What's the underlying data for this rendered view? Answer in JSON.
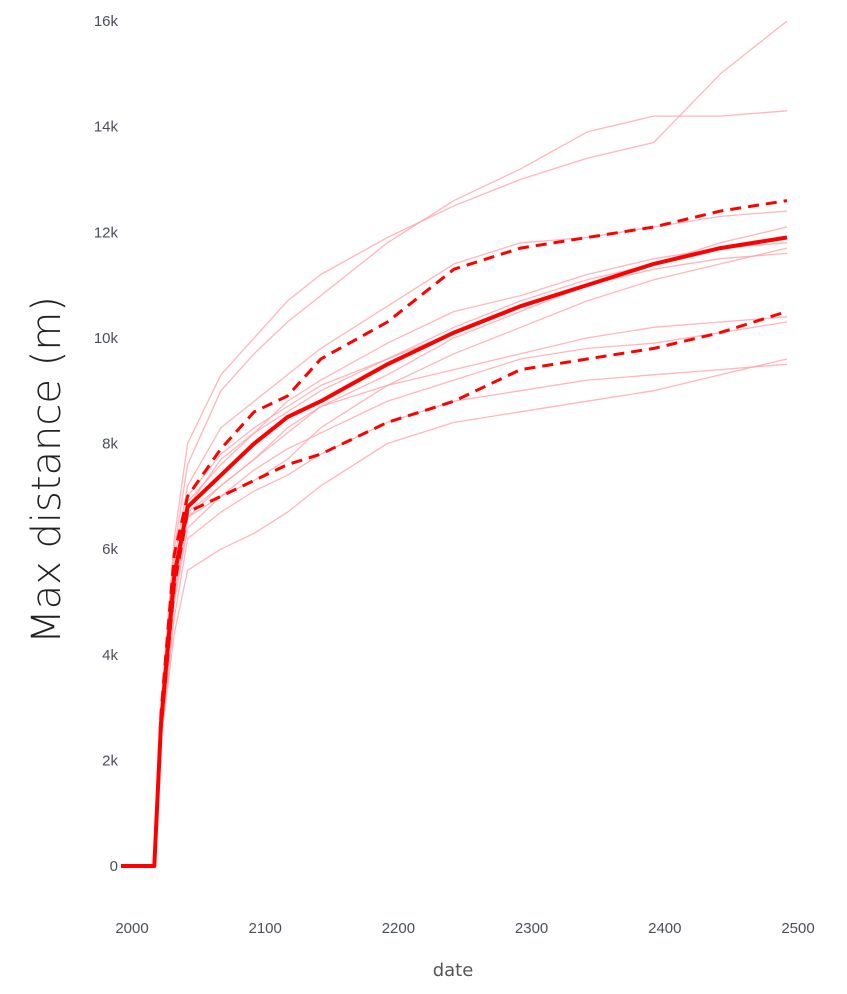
{
  "chart_data": {
    "type": "line",
    "title": "",
    "xlabel": "date",
    "ylabel": "Max distance (m)",
    "xlim": [
      2000,
      2500
    ],
    "ylim": [
      0,
      16000
    ],
    "x_ticks": [
      2000,
      2100,
      2200,
      2300,
      2400,
      2500
    ],
    "x_tick_labels": [
      "2000",
      "2100",
      "2200",
      "2300",
      "2400",
      "2500"
    ],
    "y_ticks": [
      0,
      2000,
      4000,
      6000,
      8000,
      10000,
      12000,
      14000,
      16000
    ],
    "y_tick_labels": [
      "0",
      "2k",
      "4k",
      "6k",
      "8k",
      "10k",
      "12k",
      "14k",
      "16k"
    ],
    "grid": false,
    "colors": {
      "ensemble": "#ff9ea6",
      "median": "#ff0000",
      "bounds": "#ff0000",
      "tick_text": "#4a4f5c"
    },
    "series": [
      {
        "role": "ensemble",
        "style": "thin",
        "x": [
          2000,
          2025,
          2030,
          2040,
          2050,
          2075,
          2100,
          2125,
          2150,
          2200,
          2250,
          2300,
          2350,
          2400,
          2450,
          2500
        ],
        "y": [
          0,
          0,
          3000,
          6200,
          8000,
          9300,
          10000,
          10700,
          11200,
          11900,
          12500,
          13000,
          13400,
          13700,
          15000,
          16000
        ]
      },
      {
        "role": "ensemble",
        "style": "thin",
        "x": [
          2000,
          2025,
          2030,
          2040,
          2050,
          2075,
          2100,
          2125,
          2150,
          2200,
          2250,
          2300,
          2350,
          2400,
          2450,
          2500
        ],
        "y": [
          0,
          0,
          3000,
          6000,
          7600,
          9000,
          9700,
          10300,
          10800,
          11800,
          12600,
          13200,
          13900,
          14200,
          14200,
          14300
        ]
      },
      {
        "role": "ensemble",
        "style": "thin",
        "x": [
          2000,
          2025,
          2030,
          2040,
          2050,
          2075,
          2100,
          2125,
          2150,
          2200,
          2250,
          2300,
          2350,
          2400,
          2450,
          2500
        ],
        "y": [
          0,
          0,
          2900,
          5800,
          7200,
          8300,
          8800,
          9300,
          9800,
          10600,
          11400,
          11800,
          11900,
          12100,
          12300,
          12400
        ]
      },
      {
        "role": "ensemble",
        "style": "thin",
        "x": [
          2000,
          2025,
          2030,
          2040,
          2050,
          2075,
          2100,
          2125,
          2150,
          2200,
          2250,
          2300,
          2350,
          2400,
          2450,
          2500
        ],
        "y": [
          0,
          0,
          2800,
          5600,
          6900,
          7600,
          8200,
          8600,
          9000,
          9600,
          10200,
          10700,
          11100,
          11400,
          11700,
          11900
        ]
      },
      {
        "role": "ensemble",
        "style": "thin",
        "x": [
          2000,
          2025,
          2030,
          2040,
          2050,
          2075,
          2100,
          2125,
          2150,
          2200,
          2250,
          2300,
          2350,
          2400,
          2450,
          2500
        ],
        "y": [
          0,
          0,
          2700,
          5400,
          6700,
          7200,
          7700,
          8200,
          8700,
          9300,
          10000,
          10500,
          11000,
          11400,
          11800,
          12100
        ]
      },
      {
        "role": "ensemble",
        "style": "thin",
        "x": [
          2000,
          2025,
          2030,
          2040,
          2050,
          2075,
          2100,
          2125,
          2150,
          2200,
          2250,
          2300,
          2350,
          2400,
          2450,
          2500
        ],
        "y": [
          0,
          0,
          2700,
          5300,
          6600,
          7000,
          7300,
          7700,
          8300,
          9100,
          9700,
          10200,
          10700,
          11100,
          11400,
          11700
        ]
      },
      {
        "role": "ensemble",
        "style": "thin",
        "x": [
          2000,
          2025,
          2030,
          2040,
          2050,
          2075,
          2100,
          2125,
          2150,
          2200,
          2250,
          2300,
          2350,
          2400,
          2450,
          2500
        ],
        "y": [
          0,
          0,
          2600,
          5100,
          6600,
          7200,
          7700,
          8300,
          8700,
          9100,
          9400,
          9700,
          10000,
          10200,
          10300,
          10400
        ]
      },
      {
        "role": "ensemble",
        "style": "thin",
        "x": [
          2000,
          2025,
          2030,
          2040,
          2050,
          2075,
          2100,
          2125,
          2150,
          2200,
          2250,
          2300,
          2350,
          2400,
          2450,
          2500
        ],
        "y": [
          0,
          0,
          2600,
          5000,
          6400,
          7000,
          7500,
          7900,
          8200,
          8800,
          9200,
          9600,
          9800,
          9900,
          10100,
          10300
        ]
      },
      {
        "role": "ensemble",
        "style": "thin",
        "x": [
          2000,
          2025,
          2030,
          2040,
          2050,
          2075,
          2100,
          2125,
          2150,
          2200,
          2250,
          2300,
          2350,
          2400,
          2450,
          2500
        ],
        "y": [
          0,
          0,
          2500,
          4700,
          6200,
          6700,
          7100,
          7400,
          7800,
          8400,
          8800,
          9000,
          9200,
          9300,
          9400,
          9500
        ]
      },
      {
        "role": "ensemble",
        "style": "thin",
        "x": [
          2000,
          2025,
          2030,
          2040,
          2050,
          2075,
          2100,
          2125,
          2150,
          2200,
          2250,
          2300,
          2350,
          2400,
          2450,
          2500
        ],
        "y": [
          0,
          0,
          2400,
          4400,
          5600,
          6000,
          6300,
          6700,
          7200,
          8000,
          8400,
          8600,
          8800,
          9000,
          9300,
          9600
        ]
      },
      {
        "role": "ensemble",
        "style": "thin",
        "x": [
          2000,
          2025,
          2030,
          2040,
          2050,
          2075,
          2100,
          2125,
          2150,
          2200,
          2250,
          2300,
          2350,
          2400,
          2450,
          2500
        ],
        "y": [
          0,
          0,
          2700,
          5500,
          6800,
          7700,
          8200,
          8800,
          9200,
          9900,
          10500,
          10800,
          11200,
          11500,
          11700,
          11800
        ]
      },
      {
        "role": "ensemble",
        "style": "thin",
        "x": [
          2000,
          2025,
          2030,
          2040,
          2050,
          2075,
          2100,
          2125,
          2150,
          2200,
          2250,
          2300,
          2350,
          2400,
          2450,
          2500
        ],
        "y": [
          0,
          0,
          2800,
          5600,
          7000,
          7800,
          8300,
          8700,
          9100,
          9600,
          10100,
          10600,
          11000,
          11300,
          11500,
          11600
        ]
      },
      {
        "role": "median",
        "style": "thick",
        "x": [
          2000,
          2025,
          2030,
          2040,
          2050,
          2075,
          2100,
          2125,
          2150,
          2200,
          2250,
          2300,
          2350,
          2400,
          2450,
          2500
        ],
        "y": [
          0,
          0,
          2700,
          5500,
          6800,
          7400,
          8000,
          8500,
          8800,
          9500,
          10100,
          10600,
          11000,
          11400,
          11700,
          11900
        ]
      },
      {
        "role": "upper-bound",
        "style": "dashed",
        "x": [
          2000,
          2025,
          2030,
          2040,
          2050,
          2075,
          2100,
          2125,
          2150,
          2200,
          2250,
          2300,
          2350,
          2400,
          2450,
          2500
        ],
        "y": [
          0,
          0,
          2900,
          5900,
          7000,
          7900,
          8600,
          8900,
          9600,
          10300,
          11300,
          11700,
          11900,
          12100,
          12400,
          12600
        ]
      },
      {
        "role": "lower-bound",
        "style": "dashed",
        "x": [
          2000,
          2025,
          2030,
          2040,
          2050,
          2075,
          2100,
          2125,
          2150,
          2200,
          2250,
          2300,
          2350,
          2400,
          2450,
          2500
        ],
        "y": [
          0,
          0,
          2600,
          5300,
          6700,
          7000,
          7300,
          7600,
          7800,
          8400,
          8800,
          9400,
          9600,
          9800,
          10100,
          10500
        ]
      }
    ]
  }
}
